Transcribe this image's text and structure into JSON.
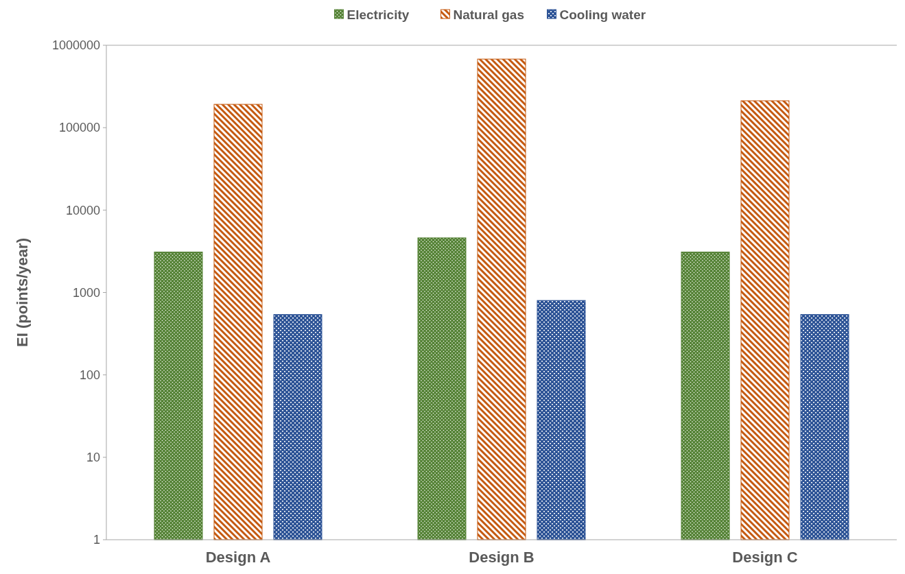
{
  "chart_data": {
    "type": "bar",
    "ylabel": "EI (points/year)",
    "categories": [
      "Design A",
      "Design B",
      "Design C"
    ],
    "series": [
      {
        "name": "Electricity",
        "color": "#548235",
        "values": [
          3100,
          4600,
          3100
        ]
      },
      {
        "name": "Natural gas",
        "color": "#c55a11",
        "values": [
          192000,
          680000,
          212000
        ]
      },
      {
        "name": "Cooling water",
        "color": "#2f5597",
        "values": [
          540,
          800,
          540
        ]
      }
    ],
    "log": "y",
    "ylim": [
      1,
      1000000
    ],
    "yticks": [
      1,
      10,
      100,
      1000,
      10000,
      100000,
      1000000
    ],
    "grid": false,
    "legend": "top"
  }
}
